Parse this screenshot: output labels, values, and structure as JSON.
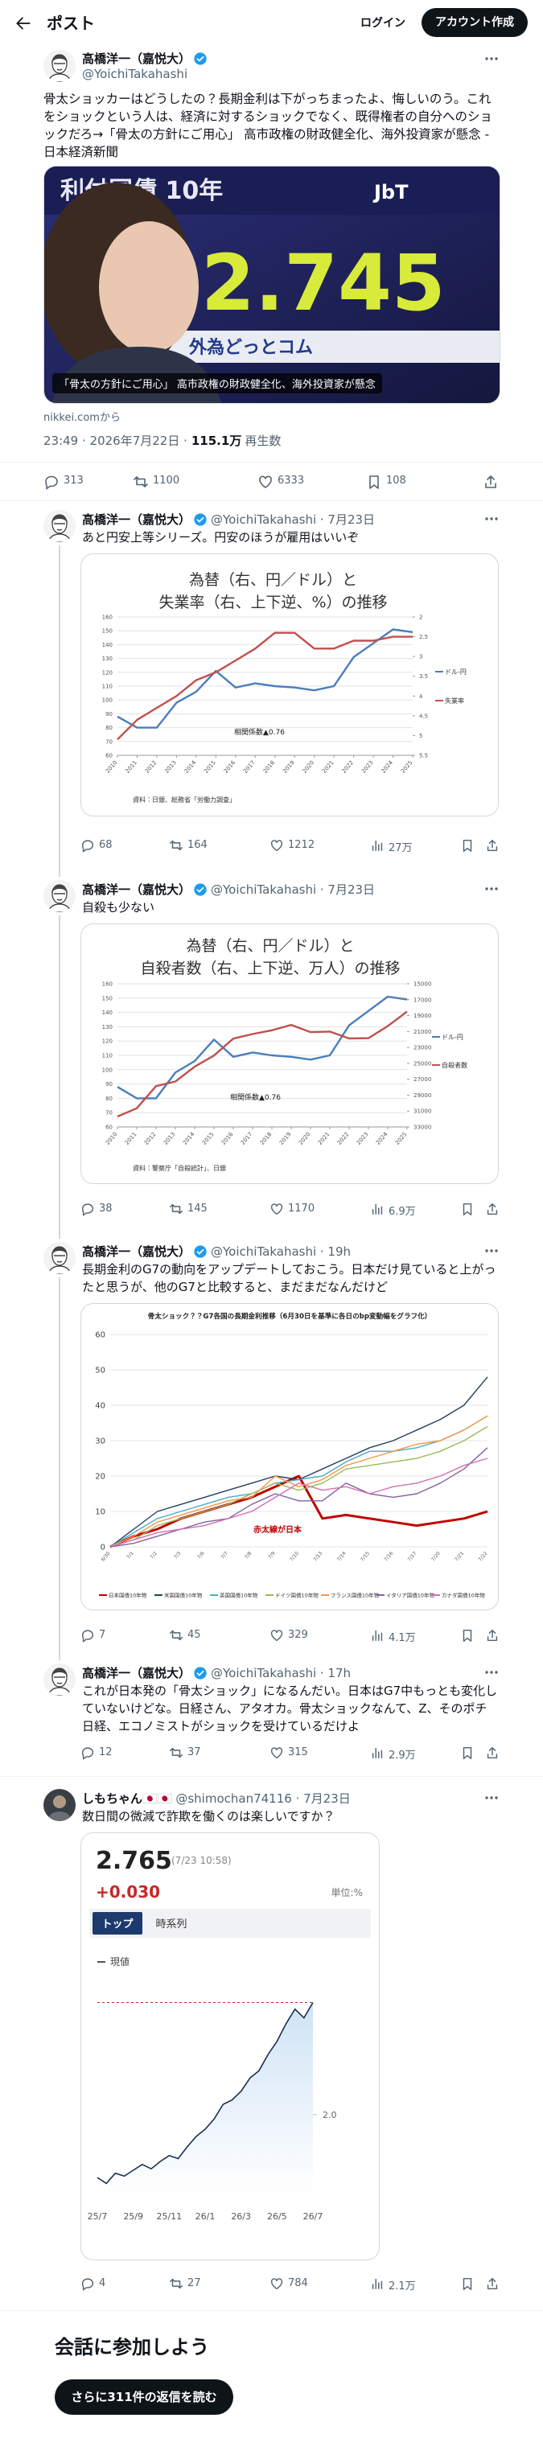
{
  "header": {
    "title": "ポスト",
    "login": "ログイン",
    "signup": "アカウント作成"
  },
  "main_post": {
    "name": "高橋洋一（嘉悦大）",
    "verified": true,
    "handle": "@YoichiTakahashi",
    "text": "骨太ショッカーはどうしたの？長期金利は下がっちまったよ、悔しいのう。これをショックという人は、経済に対するショックでなく、既得権者の自分へのショックだろ→「骨太の方針にご用心」 高市政権の財政健全化、海外投資家が懸念 - 日本経済新聞",
    "link_card": {
      "board": "利付国債 10年",
      "logo": "JbT",
      "price": "2.745",
      "brand": "外為どっとコム",
      "caption": "「骨太の方針にご用心」 高市政権の財政健全化、海外投資家が懸念",
      "source": "nikkei.comから"
    },
    "time": "23:49 · 2026年7月22日 ·",
    "views": "115.1万",
    "views_label": "再生数",
    "stats": {
      "replies": "313",
      "reposts": "1100",
      "likes": "6333",
      "bookmarks": "108"
    }
  },
  "replies": [
    {
      "name": "高橋洋一（嘉悦大）",
      "verified": true,
      "meta": "@YoichiTakahashi · 7月23日",
      "text": "あと円安上等シリーズ。円安のほうが雇用はいいぞ",
      "chart_data": {
        "type": "dual_line",
        "title": [
          "為替（右、円／ドル）と",
          "失業率（右、上下逆、%）の推移"
        ],
        "x": [
          2010,
          2011,
          2012,
          2013,
          2014,
          2015,
          2016,
          2017,
          2018,
          2019,
          2020,
          2021,
          2022,
          2023,
          2024,
          2025
        ],
        "xlim": [
          2010,
          2025
        ],
        "series": [
          {
            "name": "ドル-円",
            "color": "#4a7ebb",
            "values": [
              88,
              80,
              80,
              98,
              106,
              121,
              109,
              112,
              110,
              109,
              107,
              110,
              131,
              141,
              151,
              149
            ]
          },
          {
            "name": "失業率",
            "color": "#c0504d",
            "axis": "y2",
            "values": [
              5.1,
              4.6,
              4.3,
              4.0,
              3.6,
              3.4,
              3.1,
              2.8,
              2.4,
              2.4,
              2.8,
              2.8,
              2.6,
              2.6,
              2.5,
              2.5
            ]
          }
        ],
        "ylim": [
          60,
          160
        ],
        "yticks": [
          60,
          70,
          80,
          90,
          100,
          110,
          120,
          130,
          140,
          150,
          160
        ],
        "y2lim": [
          5.5,
          2
        ],
        "y2ticks": [
          2,
          2.5,
          3,
          3.5,
          4,
          4.5,
          5,
          5.5
        ],
        "grid": true,
        "annotation": "相関係数▲0.76",
        "source": "資料：日銀、総務省「労働力調査」"
      },
      "stats": {
        "replies": "68",
        "reposts": "164",
        "likes": "1212",
        "views": "27万"
      }
    },
    {
      "name": "高橋洋一（嘉悦大）",
      "verified": true,
      "meta": "@YoichiTakahashi · 7月23日",
      "text": "自殺も少ない",
      "chart_data": {
        "type": "dual_line",
        "title": [
          "為替（右、円／ドル）と",
          "自殺者数（右、上下逆、万人）の推移"
        ],
        "x": [
          2010,
          2011,
          2012,
          2013,
          2014,
          2015,
          2016,
          2017,
          2018,
          2019,
          2020,
          2021,
          2022,
          2023,
          2024,
          2025
        ],
        "xlim": [
          2010,
          2025
        ],
        "series": [
          {
            "name": "ドル-円",
            "color": "#4a7ebb",
            "values": [
              88,
              80,
              80,
              98,
              106,
              121,
              109,
              112,
              110,
              109,
              107,
              110,
              131,
              141,
              151,
              149
            ]
          },
          {
            "name": "自殺者数",
            "color": "#c0504d",
            "axis": "y2",
            "values": [
              31690,
              30651,
              27858,
              27283,
              25427,
              24025,
              21897,
              21321,
              20840,
              20169,
              21081,
              21007,
              21881,
              21837,
              20320,
              18500
            ]
          }
        ],
        "ylim": [
          60,
          160
        ],
        "yticks": [
          60,
          70,
          80,
          90,
          100,
          110,
          120,
          130,
          140,
          150,
          160
        ],
        "y2lim": [
          33000,
          15000
        ],
        "y2ticks": [
          15000,
          17000,
          19000,
          21000,
          23000,
          25000,
          27000,
          29000,
          31000,
          33000
        ],
        "grid": true,
        "annotation": "相関係数▲0.76",
        "source": "資料：警察庁「自殺統計」、日銀"
      },
      "stats": {
        "replies": "38",
        "reposts": "145",
        "likes": "1170",
        "views": "6.9万"
      }
    },
    {
      "name": "高橋洋一（嘉悦大）",
      "verified": true,
      "meta": "@YoichiTakahashi · 19h",
      "text": "長期金利のG7の動向をアップデートしておこう。日本だけ見ていると上がったと思うが、他のG7と比較すると、まだまだなんだけど",
      "chart_data": {
        "type": "multi_line",
        "title": "骨太ショック？？G7各国の長期金利推移（6月30日を基準に各日のbp変動幅をグラフ化）",
        "categories": [
          "6/30",
          "7/1",
          "7/2",
          "7/3",
          "7/6",
          "7/7",
          "7/8",
          "7/9",
          "7/10",
          "7/13",
          "7/14",
          "7/15",
          "7/16",
          "7/17",
          "7/20",
          "7/21",
          "7/22"
        ],
        "series": [
          {
            "name": "日本国債10年物",
            "color": "#c00000",
            "values": [
              0,
              3,
              5,
              8,
              10,
              12,
              14,
              17,
              20,
              8,
              9,
              8,
              7,
              6,
              7,
              8,
              10
            ]
          },
          {
            "name": "米国国債10年物",
            "color": "#243f60",
            "values": [
              0,
              5,
              10,
              12,
              14,
              16,
              18,
              20,
              19,
              22,
              25,
              28,
              30,
              33,
              36,
              40,
              48
            ]
          },
          {
            "name": "英国国債10年物",
            "color": "#4bacc6",
            "values": [
              0,
              4,
              8,
              10,
              12,
              14,
              15,
              18,
              19,
              20,
              24,
              27,
              27,
              28,
              30,
              33,
              37
            ]
          },
          {
            "name": "ドイツ国債10年物",
            "color": "#9bbb59",
            "values": [
              0,
              2,
              6,
              8,
              10,
              12,
              15,
              18,
              16,
              18,
              22,
              23,
              24,
              25,
              27,
              30,
              34
            ]
          },
          {
            "name": "フランス国債10年物",
            "color": "#f79646",
            "values": [
              0,
              3,
              7,
              9,
              11,
              13,
              14,
              20,
              17,
              19,
              23,
              25,
              27,
              29,
              30,
              33,
              37
            ]
          },
          {
            "name": "イタリア国債10年物",
            "color": "#8064a2",
            "values": [
              0,
              1,
              3,
              5,
              7,
              8,
              12,
              15,
              13,
              13,
              18,
              15,
              14,
              15,
              18,
              22,
              28
            ]
          },
          {
            "name": "カナダ国債10年物",
            "color": "#d36fb0",
            "values": [
              0,
              2,
              4,
              5,
              6,
              8,
              10,
              14,
              18,
              16,
              17,
              15,
              17,
              18,
              20,
              23,
              25
            ]
          }
        ],
        "ylim": [
          0,
          60
        ],
        "yticks": [
          0,
          10,
          20,
          30,
          40,
          50,
          60
        ],
        "grid": true,
        "annotation": "赤太線が日本"
      },
      "stats": {
        "replies": "7",
        "reposts": "45",
        "likes": "329",
        "views": "4.1万"
      }
    },
    {
      "name": "高橋洋一（嘉悦大）",
      "verified": true,
      "meta": "@YoichiTakahashi · 17h",
      "text": "これが日本発の「骨太ショック」になるんだい。日本はG7中もっとも変化していないけどな。日経さん、アタオカ。骨太ショックなんて、Z、そのポチ日経、エコノミストがショックを受けているだけよ",
      "stats": {
        "replies": "12",
        "reposts": "37",
        "likes": "315",
        "views": "2.9万"
      }
    },
    {
      "name": "しもちゃん🇯🇵🇯🇵",
      "verified": false,
      "meta": "@shimochan74116 · 7月23日",
      "text": "数日間の微減で詐欺を働くのは楽しいですか？",
      "chart_data": {
        "type": "spark_line",
        "price": "2.765",
        "timestamp": "(7/23 10:58)",
        "change": "+0.030",
        "unit": "単位:%",
        "tabs": [
          "トップ",
          "時系列"
        ],
        "categories": [
          "25/7",
          null,
          null,
          null,
          "25/9",
          null,
          null,
          null,
          "25/11",
          null,
          null,
          null,
          "26/1",
          null,
          null,
          null,
          "26/3",
          null,
          null,
          null,
          "26/5",
          null,
          null,
          null,
          "26/7"
        ],
        "series": [
          {
            "name": "現値",
            "color": "#1a3350",
            "values": [
              1.57,
              1.53,
              1.6,
              1.58,
              1.62,
              1.66,
              1.63,
              1.68,
              1.72,
              1.7,
              1.78,
              1.85,
              1.9,
              1.97,
              2.07,
              2.1,
              2.16,
              2.25,
              2.3,
              2.41,
              2.5,
              2.62,
              2.72,
              2.66,
              2.765
            ]
          }
        ],
        "ylim": [
          1.45,
          2.85
        ],
        "yticks": [
          {
            "value": 2,
            "label": "2.0"
          }
        ]
      },
      "stats": {
        "replies": "4",
        "reposts": "27",
        "likes": "784",
        "views": "2.1万"
      }
    }
  ],
  "footer": {
    "heading": "会話に参加しよう",
    "button": "さらに311件の返信を読む"
  }
}
